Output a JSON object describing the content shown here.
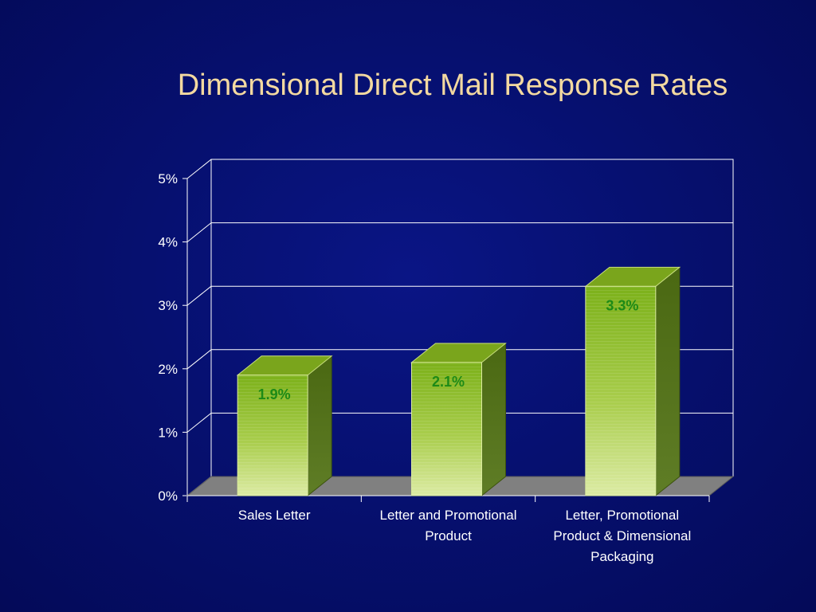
{
  "slide": {
    "title": "Dimensional Direct Mail Response Rates"
  },
  "chart_data": {
    "type": "bar",
    "title": "Dimensional Direct Mail Response Rates",
    "categories": [
      [
        "Sales Letter"
      ],
      [
        "Letter and Promotional",
        "Product"
      ],
      [
        "Letter, Promotional",
        "Product & Dimensional",
        "Packaging"
      ]
    ],
    "values": [
      1.9,
      2.1,
      3.3
    ],
    "data_labels": [
      "1.9%",
      "2.1%",
      "3.3%"
    ],
    "ylim": [
      0,
      5
    ],
    "yticks": [
      0,
      1,
      2,
      3,
      4,
      5
    ],
    "ytick_labels": [
      "0%",
      "1%",
      "2%",
      "3%",
      "4%",
      "5%"
    ],
    "xlabel": "",
    "ylabel": "",
    "grid": true,
    "style": "3d-column",
    "colors": {
      "bar_top": "#83b81a",
      "bar_bottom": "#d8e99a",
      "bar_side": "#4d6a12",
      "bar_cap": "#7aa51c",
      "floor": "#808080",
      "data_label": "#1d8a17",
      "axis": "#ffffff",
      "grid": "#ffffff"
    }
  }
}
